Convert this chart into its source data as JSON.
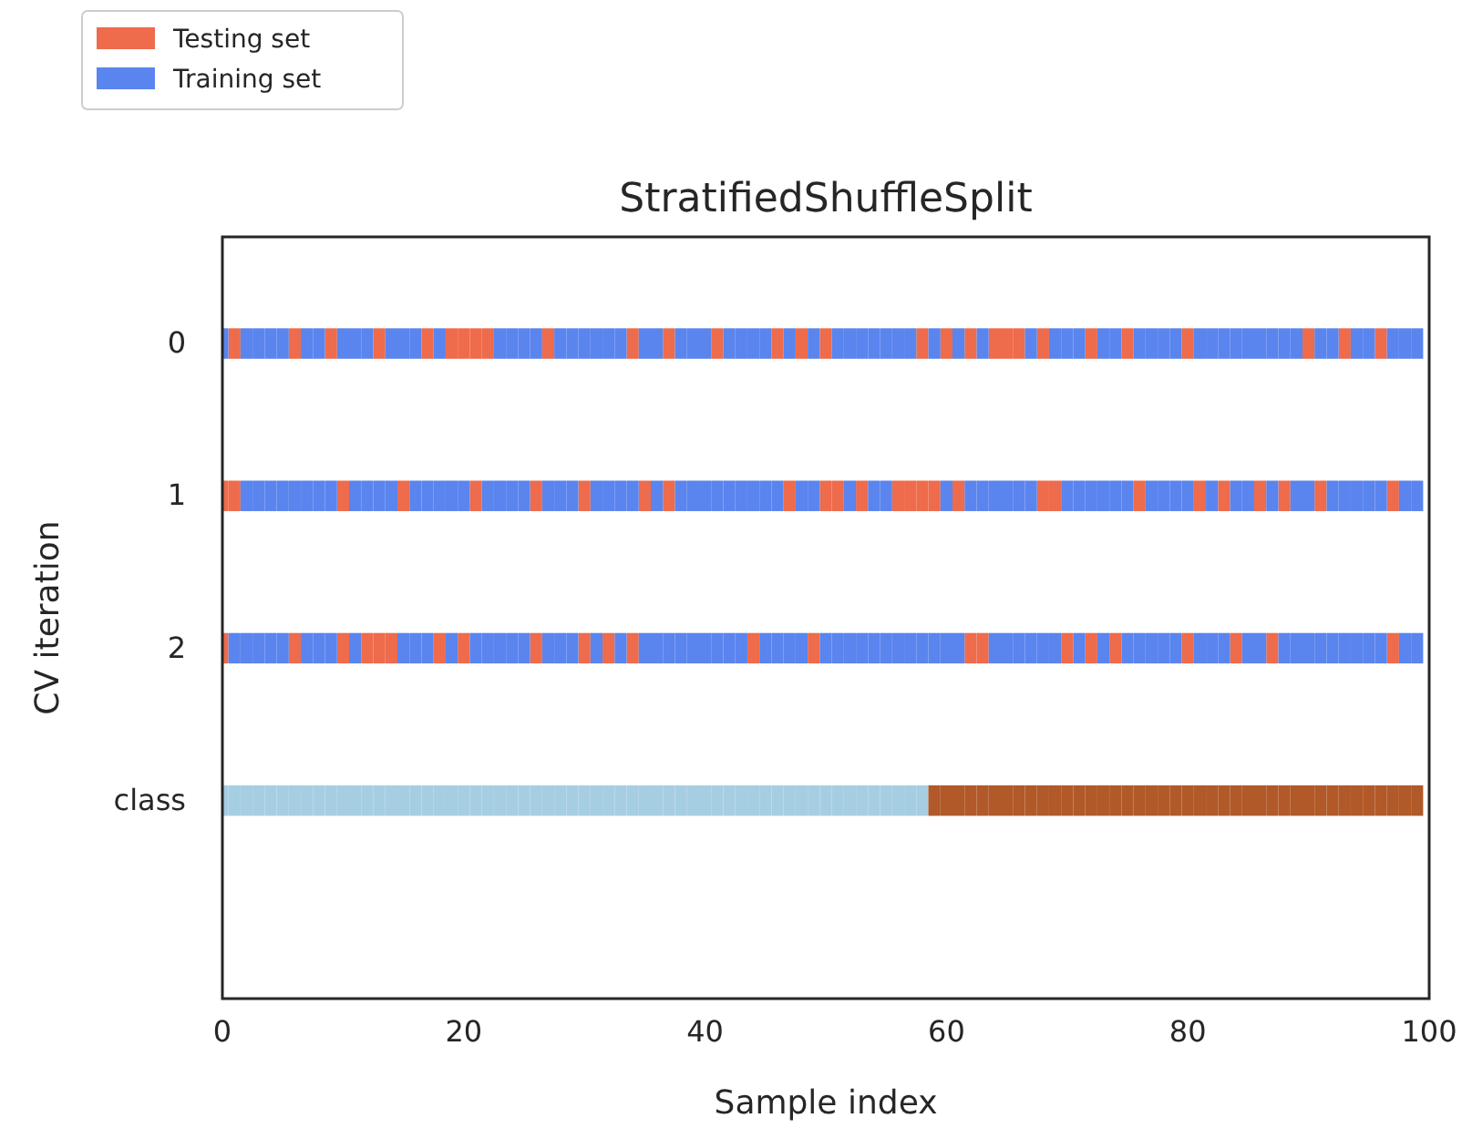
{
  "chart_data": {
    "type": "scatter",
    "title": "StratifiedShuffleSplit",
    "xlabel": "Sample index",
    "ylabel": "CV iteration",
    "marker": "square",
    "grid": false,
    "legend": "top left",
    "xlim": [
      0,
      100
    ],
    "xticks": [
      0,
      20,
      40,
      60,
      80,
      100
    ],
    "ylim": [
      4.8,
      -0.2
    ],
    "yticks": [
      {
        "value": 0.5,
        "label": "0"
      },
      {
        "value": 1.5,
        "label": "1"
      },
      {
        "value": 2.5,
        "label": "2"
      },
      {
        "value": 3.5,
        "label": "class"
      }
    ],
    "series": [
      {
        "name": "Testing set",
        "color": "#ee6b4b",
        "x": [
          1,
          6,
          9,
          13,
          17,
          19,
          20,
          21,
          22,
          27,
          34,
          37,
          41,
          46,
          48,
          50,
          58,
          60,
          62,
          64,
          65,
          66,
          68,
          72,
          75,
          80,
          90,
          93,
          96
        ],
        "values": [
          0.5,
          0.5,
          0.5,
          0.5,
          0.5,
          0.5,
          0.5,
          0.5,
          0.5,
          0.5,
          0.5,
          0.5,
          0.5,
          0.5,
          0.5,
          0.5,
          0.5,
          0.5,
          0.5,
          0.5,
          0.5,
          0.5,
          0.5,
          0.5,
          0.5,
          0.5,
          0.5,
          0.5,
          0.5
        ]
      },
      {
        "name": "Training set",
        "color": "#5a84ee",
        "x": [
          0,
          2,
          3,
          4,
          5,
          7,
          8,
          10,
          11,
          12,
          14,
          15,
          16,
          18,
          23,
          24,
          25,
          26,
          28,
          29,
          30,
          31,
          32,
          33,
          35,
          36,
          38,
          39,
          40,
          42,
          43,
          44,
          45,
          47,
          49,
          51,
          52,
          53,
          54,
          55,
          56,
          57,
          59,
          61,
          63,
          67,
          69,
          70,
          71,
          73,
          74,
          76,
          77,
          78,
          79,
          81,
          82,
          83,
          84,
          85,
          86,
          87,
          88,
          89,
          91,
          92,
          94,
          95,
          97,
          98,
          99
        ],
        "values": [
          0.5,
          0.5,
          0.5,
          0.5,
          0.5,
          0.5,
          0.5,
          0.5,
          0.5,
          0.5,
          0.5,
          0.5,
          0.5,
          0.5,
          0.5,
          0.5,
          0.5,
          0.5,
          0.5,
          0.5,
          0.5,
          0.5,
          0.5,
          0.5,
          0.5,
          0.5,
          0.5,
          0.5,
          0.5,
          0.5,
          0.5,
          0.5,
          0.5,
          0.5,
          0.5,
          0.5,
          0.5,
          0.5,
          0.5,
          0.5,
          0.5,
          0.5,
          0.5,
          0.5,
          0.5,
          0.5,
          0.5,
          0.5,
          0.5,
          0.5,
          0.5,
          0.5,
          0.5,
          0.5,
          0.5,
          0.5,
          0.5,
          0.5,
          0.5,
          0.5,
          0.5,
          0.5,
          0.5,
          0.5,
          0.5,
          0.5,
          0.5,
          0.5,
          0.5,
          0.5,
          0.5
        ]
      },
      {
        "color": "#ee6b4b",
        "x": [
          0,
          1,
          10,
          15,
          21,
          26,
          30,
          35,
          37,
          47,
          50,
          51,
          53,
          56,
          57,
          58,
          59,
          61,
          68,
          69,
          76,
          81,
          83,
          86,
          88,
          91,
          97
        ],
        "values": [
          1.5,
          1.5,
          1.5,
          1.5,
          1.5,
          1.5,
          1.5,
          1.5,
          1.5,
          1.5,
          1.5,
          1.5,
          1.5,
          1.5,
          1.5,
          1.5,
          1.5,
          1.5,
          1.5,
          1.5,
          1.5,
          1.5,
          1.5,
          1.5,
          1.5,
          1.5,
          1.5
        ]
      },
      {
        "color": "#5a84ee",
        "x": [
          2,
          3,
          4,
          5,
          6,
          7,
          8,
          9,
          11,
          12,
          13,
          14,
          16,
          17,
          18,
          19,
          20,
          22,
          23,
          24,
          25,
          27,
          28,
          29,
          31,
          32,
          33,
          34,
          36,
          38,
          39,
          40,
          41,
          42,
          43,
          44,
          45,
          46,
          48,
          49,
          52,
          54,
          55,
          60,
          62,
          63,
          64,
          65,
          66,
          67,
          70,
          71,
          72,
          73,
          74,
          75,
          77,
          78,
          79,
          80,
          82,
          84,
          85,
          87,
          89,
          90,
          92,
          93,
          94,
          95,
          96,
          98,
          99
        ],
        "values": [
          1.5,
          1.5,
          1.5,
          1.5,
          1.5,
          1.5,
          1.5,
          1.5,
          1.5,
          1.5,
          1.5,
          1.5,
          1.5,
          1.5,
          1.5,
          1.5,
          1.5,
          1.5,
          1.5,
          1.5,
          1.5,
          1.5,
          1.5,
          1.5,
          1.5,
          1.5,
          1.5,
          1.5,
          1.5,
          1.5,
          1.5,
          1.5,
          1.5,
          1.5,
          1.5,
          1.5,
          1.5,
          1.5,
          1.5,
          1.5,
          1.5,
          1.5,
          1.5,
          1.5,
          1.5,
          1.5,
          1.5,
          1.5,
          1.5,
          1.5,
          1.5,
          1.5,
          1.5,
          1.5,
          1.5,
          1.5,
          1.5,
          1.5,
          1.5,
          1.5,
          1.5,
          1.5,
          1.5,
          1.5,
          1.5,
          1.5,
          1.5,
          1.5,
          1.5,
          1.5,
          1.5,
          1.5,
          1.5
        ]
      },
      {
        "color": "#ee6b4b",
        "x": [
          0,
          6,
          10,
          12,
          13,
          14,
          18,
          20,
          26,
          30,
          32,
          34,
          44,
          49,
          62,
          63,
          70,
          72,
          74,
          80,
          84,
          87,
          97
        ],
        "values": [
          2.5,
          2.5,
          2.5,
          2.5,
          2.5,
          2.5,
          2.5,
          2.5,
          2.5,
          2.5,
          2.5,
          2.5,
          2.5,
          2.5,
          2.5,
          2.5,
          2.5,
          2.5,
          2.5,
          2.5,
          2.5,
          2.5,
          2.5
        ]
      },
      {
        "color": "#5a84ee",
        "x": [
          1,
          2,
          3,
          4,
          5,
          7,
          8,
          9,
          11,
          15,
          16,
          17,
          19,
          21,
          22,
          23,
          24,
          25,
          27,
          28,
          29,
          31,
          33,
          35,
          36,
          37,
          38,
          39,
          40,
          41,
          42,
          43,
          45,
          46,
          47,
          48,
          50,
          51,
          52,
          53,
          54,
          55,
          56,
          57,
          58,
          59,
          60,
          61,
          64,
          65,
          66,
          67,
          68,
          69,
          71,
          73,
          75,
          76,
          77,
          78,
          79,
          81,
          82,
          83,
          85,
          86,
          88,
          89,
          90,
          91,
          92,
          93,
          94,
          95,
          96,
          98,
          99
        ],
        "values": [
          2.5,
          2.5,
          2.5,
          2.5,
          2.5,
          2.5,
          2.5,
          2.5,
          2.5,
          2.5,
          2.5,
          2.5,
          2.5,
          2.5,
          2.5,
          2.5,
          2.5,
          2.5,
          2.5,
          2.5,
          2.5,
          2.5,
          2.5,
          2.5,
          2.5,
          2.5,
          2.5,
          2.5,
          2.5,
          2.5,
          2.5,
          2.5,
          2.5,
          2.5,
          2.5,
          2.5,
          2.5,
          2.5,
          2.5,
          2.5,
          2.5,
          2.5,
          2.5,
          2.5,
          2.5,
          2.5,
          2.5,
          2.5,
          2.5,
          2.5,
          2.5,
          2.5,
          2.5,
          2.5,
          2.5,
          2.5,
          2.5,
          2.5,
          2.5,
          2.5,
          2.5,
          2.5,
          2.5,
          2.5,
          2.5,
          2.5,
          2.5,
          2.5,
          2.5,
          2.5,
          2.5,
          2.5,
          2.5,
          2.5,
          2.5,
          2.5,
          2.5
        ]
      },
      {
        "color": "#a6cee3",
        "x": [
          0,
          1,
          2,
          3,
          4,
          5,
          6,
          7,
          8,
          9,
          10,
          11,
          12,
          13,
          14,
          15,
          16,
          17,
          18,
          19,
          20,
          21,
          22,
          23,
          24,
          25,
          26,
          27,
          28,
          29,
          30,
          31,
          32,
          33,
          34,
          35,
          36,
          37,
          38,
          39,
          40,
          41,
          42,
          43,
          44,
          45,
          46,
          47,
          48,
          49,
          50,
          51,
          52,
          53,
          54,
          55,
          56,
          57,
          58
        ],
        "values": [
          3.5,
          3.5,
          3.5,
          3.5,
          3.5,
          3.5,
          3.5,
          3.5,
          3.5,
          3.5,
          3.5,
          3.5,
          3.5,
          3.5,
          3.5,
          3.5,
          3.5,
          3.5,
          3.5,
          3.5,
          3.5,
          3.5,
          3.5,
          3.5,
          3.5,
          3.5,
          3.5,
          3.5,
          3.5,
          3.5,
          3.5,
          3.5,
          3.5,
          3.5,
          3.5,
          3.5,
          3.5,
          3.5,
          3.5,
          3.5,
          3.5,
          3.5,
          3.5,
          3.5,
          3.5,
          3.5,
          3.5,
          3.5,
          3.5,
          3.5,
          3.5,
          3.5,
          3.5,
          3.5,
          3.5,
          3.5,
          3.5,
          3.5,
          3.5
        ]
      },
      {
        "color": "#b15928",
        "x": [
          59,
          60,
          61,
          62,
          63,
          64,
          65,
          66,
          67,
          68,
          69,
          70,
          71,
          72,
          73,
          74,
          75,
          76,
          77,
          78,
          79,
          80,
          81,
          82,
          83,
          84,
          85,
          86,
          87,
          88,
          89,
          90,
          91,
          92,
          93,
          94,
          95,
          96,
          97,
          98,
          99
        ],
        "values": [
          3.5,
          3.5,
          3.5,
          3.5,
          3.5,
          3.5,
          3.5,
          3.5,
          3.5,
          3.5,
          3.5,
          3.5,
          3.5,
          3.5,
          3.5,
          3.5,
          3.5,
          3.5,
          3.5,
          3.5,
          3.5,
          3.5,
          3.5,
          3.5,
          3.5,
          3.5,
          3.5,
          3.5,
          3.5,
          3.5,
          3.5,
          3.5,
          3.5,
          3.5,
          3.5,
          3.5,
          3.5,
          3.5,
          3.5,
          3.5,
          3.5
        ]
      }
    ]
  }
}
